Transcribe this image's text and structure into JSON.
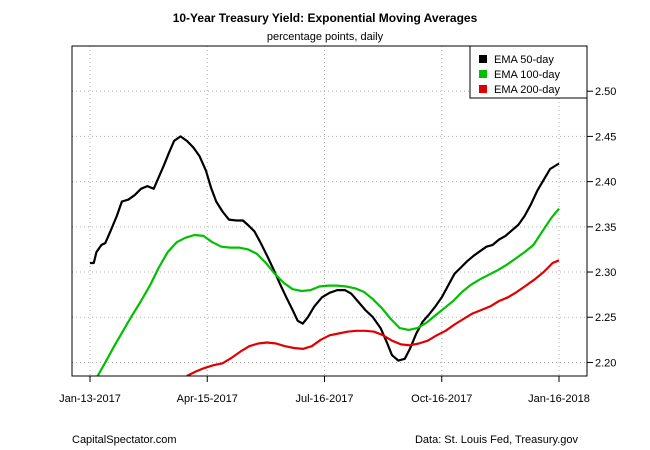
{
  "chart_data": {
    "type": "line",
    "title": "10-Year Treasury Yield: Exponential Moving Averages",
    "subtitle": "percentage points, daily",
    "xlabel": "",
    "ylabel": "",
    "x_ticks": [
      "Jan-13-2017",
      "Apr-15-2017",
      "Jul-16-2017",
      "Oct-16-2017",
      "Jan-16-2018"
    ],
    "y_ticks": [
      "2.20",
      "2.25",
      "2.30",
      "2.35",
      "2.40",
      "2.45",
      "2.50"
    ],
    "xlim": [
      "2017-01-13",
      "2018-01-16"
    ],
    "ylim": [
      2.185,
      2.55
    ],
    "grid": true,
    "legend_position": "top-right",
    "series": [
      {
        "name": "EMA 50-day",
        "color": "#000000",
        "points": [
          [
            "2017-01-13",
            2.31
          ],
          [
            "2017-01-16",
            2.31
          ],
          [
            "2017-01-18",
            2.322
          ],
          [
            "2017-01-22",
            2.33
          ],
          [
            "2017-01-25",
            2.332
          ],
          [
            "2017-01-29",
            2.345
          ],
          [
            "2017-02-03",
            2.362
          ],
          [
            "2017-02-07",
            2.378
          ],
          [
            "2017-02-12",
            2.38
          ],
          [
            "2017-02-17",
            2.385
          ],
          [
            "2017-02-22",
            2.392
          ],
          [
            "2017-02-27",
            2.395
          ],
          [
            "2017-03-04",
            2.392
          ],
          [
            "2017-03-08",
            2.405
          ],
          [
            "2017-03-12",
            2.418
          ],
          [
            "2017-03-16",
            2.432
          ],
          [
            "2017-03-20",
            2.445
          ],
          [
            "2017-03-25",
            2.45
          ],
          [
            "2017-03-30",
            2.445
          ],
          [
            "2017-04-04",
            2.438
          ],
          [
            "2017-04-09",
            2.428
          ],
          [
            "2017-04-14",
            2.412
          ],
          [
            "2017-04-18",
            2.393
          ],
          [
            "2017-04-22",
            2.378
          ],
          [
            "2017-04-27",
            2.367
          ],
          [
            "2017-05-02",
            2.358
          ],
          [
            "2017-05-08",
            2.357
          ],
          [
            "2017-05-13",
            2.357
          ],
          [
            "2017-05-17",
            2.352
          ],
          [
            "2017-05-22",
            2.345
          ],
          [
            "2017-05-27",
            2.332
          ],
          [
            "2017-06-01",
            2.318
          ],
          [
            "2017-06-06",
            2.303
          ],
          [
            "2017-06-11",
            2.287
          ],
          [
            "2017-06-16",
            2.272
          ],
          [
            "2017-06-21",
            2.258
          ],
          [
            "2017-06-25",
            2.246
          ],
          [
            "2017-06-29",
            2.243
          ],
          [
            "2017-07-03",
            2.25
          ],
          [
            "2017-07-08",
            2.262
          ],
          [
            "2017-07-14",
            2.272
          ],
          [
            "2017-07-20",
            2.277
          ],
          [
            "2017-07-26",
            2.28
          ],
          [
            "2017-08-01",
            2.28
          ],
          [
            "2017-08-06",
            2.276
          ],
          [
            "2017-08-11",
            2.268
          ],
          [
            "2017-08-17",
            2.258
          ],
          [
            "2017-08-23",
            2.25
          ],
          [
            "2017-08-29",
            2.238
          ],
          [
            "2017-09-03",
            2.222
          ],
          [
            "2017-09-07",
            2.208
          ],
          [
            "2017-09-12",
            2.202
          ],
          [
            "2017-09-17",
            2.204
          ],
          [
            "2017-09-21",
            2.215
          ],
          [
            "2017-09-26",
            2.232
          ],
          [
            "2017-10-01",
            2.245
          ],
          [
            "2017-10-06",
            2.253
          ],
          [
            "2017-10-11",
            2.262
          ],
          [
            "2017-10-16",
            2.272
          ],
          [
            "2017-10-21",
            2.285
          ],
          [
            "2017-10-26",
            2.298
          ],
          [
            "2017-10-31",
            2.305
          ],
          [
            "2017-11-05",
            2.312
          ],
          [
            "2017-11-10",
            2.318
          ],
          [
            "2017-11-15",
            2.323
          ],
          [
            "2017-11-20",
            2.328
          ],
          [
            "2017-11-25",
            2.33
          ],
          [
            "2017-11-30",
            2.336
          ],
          [
            "2017-12-05",
            2.34
          ],
          [
            "2017-12-10",
            2.346
          ],
          [
            "2017-12-15",
            2.352
          ],
          [
            "2017-12-20",
            2.362
          ],
          [
            "2017-12-25",
            2.375
          ],
          [
            "2017-12-30",
            2.39
          ],
          [
            "2018-01-04",
            2.402
          ],
          [
            "2018-01-09",
            2.414
          ],
          [
            "2018-01-16",
            2.42
          ]
        ]
      },
      {
        "name": "EMA 100-day",
        "color": "#00c000",
        "points": [
          [
            "2017-01-19",
            2.185
          ],
          [
            "2017-01-25",
            2.2
          ],
          [
            "2017-02-01",
            2.218
          ],
          [
            "2017-02-08",
            2.235
          ],
          [
            "2017-02-15",
            2.252
          ],
          [
            "2017-02-22",
            2.268
          ],
          [
            "2017-03-01",
            2.285
          ],
          [
            "2017-03-08",
            2.305
          ],
          [
            "2017-03-15",
            2.322
          ],
          [
            "2017-03-22",
            2.333
          ],
          [
            "2017-03-29",
            2.338
          ],
          [
            "2017-04-05",
            2.341
          ],
          [
            "2017-04-12",
            2.34
          ],
          [
            "2017-04-19",
            2.333
          ],
          [
            "2017-04-26",
            2.328
          ],
          [
            "2017-05-03",
            2.327
          ],
          [
            "2017-05-10",
            2.327
          ],
          [
            "2017-05-17",
            2.325
          ],
          [
            "2017-05-24",
            2.32
          ],
          [
            "2017-05-31",
            2.31
          ],
          [
            "2017-06-07",
            2.298
          ],
          [
            "2017-06-14",
            2.288
          ],
          [
            "2017-06-21",
            2.281
          ],
          [
            "2017-06-28",
            2.279
          ],
          [
            "2017-07-05",
            2.28
          ],
          [
            "2017-07-12",
            2.284
          ],
          [
            "2017-07-19",
            2.285
          ],
          [
            "2017-07-26",
            2.285
          ],
          [
            "2017-08-02",
            2.284
          ],
          [
            "2017-08-09",
            2.282
          ],
          [
            "2017-08-16",
            2.278
          ],
          [
            "2017-08-23",
            2.27
          ],
          [
            "2017-08-30",
            2.26
          ],
          [
            "2017-09-06",
            2.248
          ],
          [
            "2017-09-13",
            2.238
          ],
          [
            "2017-09-20",
            2.236
          ],
          [
            "2017-09-27",
            2.238
          ],
          [
            "2017-10-04",
            2.244
          ],
          [
            "2017-10-11",
            2.252
          ],
          [
            "2017-10-18",
            2.26
          ],
          [
            "2017-10-25",
            2.268
          ],
          [
            "2017-11-01",
            2.278
          ],
          [
            "2017-11-08",
            2.286
          ],
          [
            "2017-11-15",
            2.292
          ],
          [
            "2017-11-22",
            2.297
          ],
          [
            "2017-11-29",
            2.302
          ],
          [
            "2017-12-06",
            2.308
          ],
          [
            "2017-12-13",
            2.315
          ],
          [
            "2017-12-20",
            2.322
          ],
          [
            "2017-12-27",
            2.33
          ],
          [
            "2018-01-03",
            2.345
          ],
          [
            "2018-01-10",
            2.36
          ],
          [
            "2018-01-16",
            2.37
          ]
        ]
      },
      {
        "name": "EMA 200-day",
        "color": "#e00000",
        "points": [
          [
            "2017-03-30",
            2.185
          ],
          [
            "2017-04-06",
            2.19
          ],
          [
            "2017-04-13",
            2.194
          ],
          [
            "2017-04-20",
            2.197
          ],
          [
            "2017-04-27",
            2.199
          ],
          [
            "2017-05-04",
            2.205
          ],
          [
            "2017-05-11",
            2.212
          ],
          [
            "2017-05-18",
            2.218
          ],
          [
            "2017-05-25",
            2.221
          ],
          [
            "2017-06-01",
            2.222
          ],
          [
            "2017-06-08",
            2.221
          ],
          [
            "2017-06-15",
            2.218
          ],
          [
            "2017-06-22",
            2.216
          ],
          [
            "2017-06-29",
            2.215
          ],
          [
            "2017-07-06",
            2.218
          ],
          [
            "2017-07-13",
            2.225
          ],
          [
            "2017-07-20",
            2.23
          ],
          [
            "2017-07-27",
            2.232
          ],
          [
            "2017-08-03",
            2.234
          ],
          [
            "2017-08-10",
            2.235
          ],
          [
            "2017-08-17",
            2.235
          ],
          [
            "2017-08-24",
            2.234
          ],
          [
            "2017-08-31",
            2.23
          ],
          [
            "2017-09-07",
            2.224
          ],
          [
            "2017-09-14",
            2.22
          ],
          [
            "2017-09-21",
            2.219
          ],
          [
            "2017-09-28",
            2.221
          ],
          [
            "2017-10-05",
            2.224
          ],
          [
            "2017-10-12",
            2.23
          ],
          [
            "2017-10-19",
            2.235
          ],
          [
            "2017-10-26",
            2.242
          ],
          [
            "2017-11-02",
            2.248
          ],
          [
            "2017-11-09",
            2.254
          ],
          [
            "2017-11-16",
            2.258
          ],
          [
            "2017-11-23",
            2.262
          ],
          [
            "2017-11-30",
            2.268
          ],
          [
            "2017-12-07",
            2.272
          ],
          [
            "2017-12-14",
            2.278
          ],
          [
            "2017-12-21",
            2.285
          ],
          [
            "2017-12-28",
            2.292
          ],
          [
            "2018-01-04",
            2.3
          ],
          [
            "2018-01-11",
            2.31
          ],
          [
            "2018-01-16",
            2.313
          ]
        ]
      }
    ]
  },
  "footer": {
    "left": "CapitalSpectator.com",
    "right": "Data: St. Louis Fed, Treasury.gov"
  }
}
